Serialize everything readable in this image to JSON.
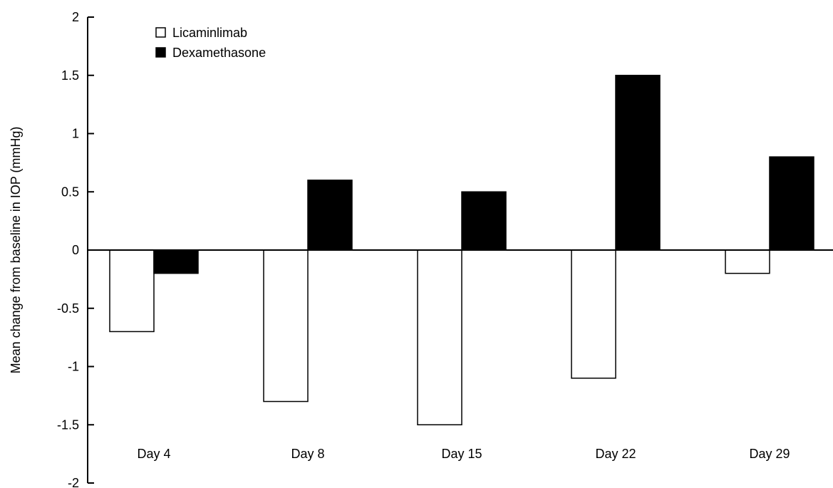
{
  "chart_data": {
    "type": "bar",
    "title": "",
    "xlabel": "",
    "ylabel": "Mean change from baseline in IOP (mmHg)",
    "ylim": [
      -2,
      2
    ],
    "yticks": [
      2,
      1.5,
      1,
      0.5,
      0,
      -0.5,
      -1,
      -1.5,
      -2
    ],
    "ytick_labels": [
      "2",
      "1.5",
      "1",
      "0.5",
      "0",
      "-0.5",
      "-1",
      "-1.5",
      "-2"
    ],
    "categories": [
      "Day 4",
      "Day 8",
      "Day 15",
      "Day 22",
      "Day 29"
    ],
    "series": [
      {
        "name": "Licaminlimab",
        "values": [
          -0.7,
          -1.3,
          -1.5,
          -1.1,
          -0.2
        ],
        "fill": "#ffffff",
        "stroke": "#000000"
      },
      {
        "name": "Dexamethasone",
        "values": [
          -0.2,
          0.6,
          0.5,
          1.5,
          0.8
        ],
        "fill": "#000000",
        "stroke": "#000000"
      }
    ],
    "grid": false,
    "legend_position": "top-left"
  }
}
